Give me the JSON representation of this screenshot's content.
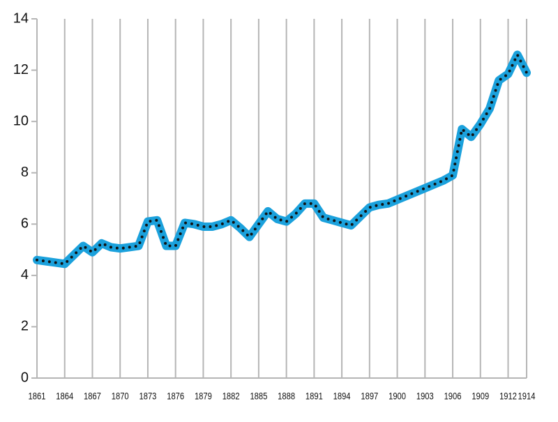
{
  "chart_data": {
    "type": "line",
    "x": [
      1861,
      1862,
      1863,
      1864,
      1865,
      1866,
      1867,
      1868,
      1869,
      1870,
      1871,
      1872,
      1873,
      1874,
      1875,
      1876,
      1877,
      1878,
      1879,
      1880,
      1881,
      1882,
      1883,
      1884,
      1885,
      1886,
      1887,
      1888,
      1889,
      1890,
      1891,
      1892,
      1893,
      1894,
      1895,
      1896,
      1897,
      1898,
      1899,
      1900,
      1901,
      1902,
      1903,
      1904,
      1905,
      1906,
      1907,
      1908,
      1909,
      1910,
      1911,
      1912,
      1913,
      1914
    ],
    "series": [
      {
        "color": "#1ba1dc",
        "values": [
          4.6,
          4.55,
          4.5,
          4.45,
          4.8,
          5.15,
          4.9,
          5.25,
          5.1,
          5.05,
          5.1,
          5.15,
          6.1,
          6.15,
          5.15,
          5.15,
          6.05,
          6.0,
          5.9,
          5.9,
          6.0,
          6.15,
          5.85,
          5.5,
          6.0,
          6.5,
          6.2,
          6.1,
          6.4,
          6.8,
          6.8,
          6.25,
          6.15,
          6.05,
          5.95,
          6.3,
          6.65,
          6.75,
          6.8,
          6.95,
          7.1,
          7.25,
          7.4,
          7.55,
          7.7,
          7.9,
          9.7,
          9.4,
          9.9,
          10.5,
          11.6,
          11.85,
          12.6,
          11.9
        ]
      }
    ],
    "xlim": [
      1861,
      1914
    ],
    "xticks": [
      1861,
      1864,
      1867,
      1870,
      1873,
      1876,
      1879,
      1882,
      1885,
      1888,
      1891,
      1894,
      1897,
      1900,
      1903,
      1906,
      1909,
      1912,
      1914
    ],
    "ylim": [
      0,
      14
    ],
    "yticks": [
      0,
      2,
      4,
      6,
      8,
      10,
      12,
      14
    ],
    "grid": true
  }
}
